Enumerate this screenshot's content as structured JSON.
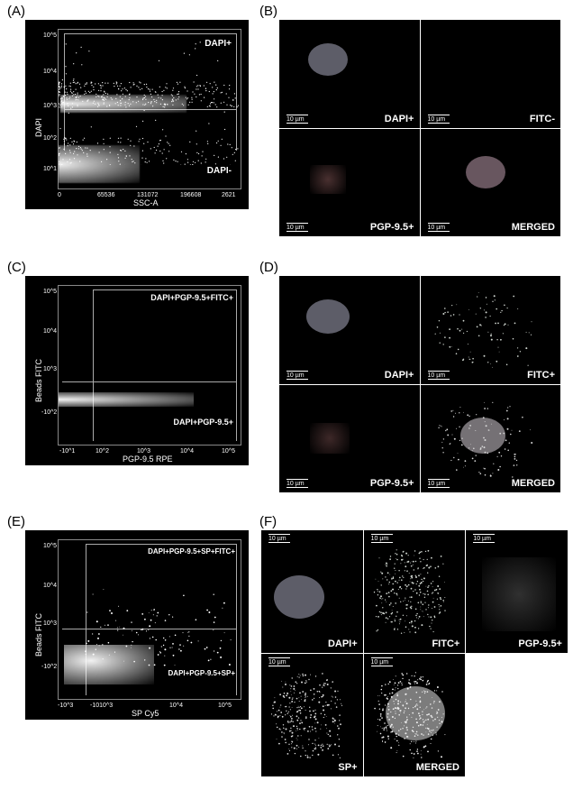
{
  "labels": {
    "A": "(A)",
    "B": "(B)",
    "C": "(C)",
    "D": "(D)",
    "E": "(E)",
    "F": "(F)"
  },
  "panelA": {
    "type": "scatter",
    "xaxis": "SSC-A",
    "yaxis": "DAPI",
    "xticks": [
      "0",
      "65536",
      "131072",
      "196608",
      "2621"
    ],
    "yticks": [
      "10^1",
      "10^2",
      "10^3",
      "10^4",
      "10^5"
    ],
    "gate_upper": "DAPI+",
    "gate_lower": "DAPI-",
    "bg": "#000000",
    "dot_color": "#ffffff"
  },
  "panelB": {
    "type": "microscopy-2x2",
    "labels": [
      "DAPI+",
      "FITC-",
      "PGP-9.5+",
      "MERGED"
    ],
    "scalebar": "10 µm",
    "colors": {
      "dapi": "#6d6d7a",
      "pgp": "#7a5050",
      "merged": "#7a6570"
    }
  },
  "panelC": {
    "type": "scatter",
    "xaxis": "PGP-9.5 RPE",
    "yaxis": "Beads FITC",
    "xticks": [
      "-10^1",
      "10^2",
      "10^3",
      "10^4",
      "10^5"
    ],
    "yticks": [
      "-10^2",
      "10^3",
      "10^4",
      "10^5"
    ],
    "gate_ur": "DAPI+PGP-9.5+FITC+",
    "gate_lr": "DAPI+PGP-9.5+",
    "bg": "#000000"
  },
  "panelD": {
    "type": "microscopy-2x2",
    "labels": [
      "DAPI+",
      "FITC+",
      "PGP-9.5+",
      "MERGED"
    ],
    "scalebar": "10 µm",
    "colors": {
      "dapi": "#6d6d7a",
      "fitc": "#9aa09a",
      "pgp": "#7a5050",
      "merged": "#8a858a"
    }
  },
  "panelE": {
    "type": "scatter",
    "xaxis": "SP Cy5",
    "yaxis": "Beads FITC",
    "xticks": [
      "-10^3",
      "-1010^3",
      "",
      "10^4",
      "10^5"
    ],
    "yticks": [
      "-10^2",
      "10^3",
      "10^4",
      "10^5"
    ],
    "gate_ur": "DAPI+PGP-9.5+SP+FITC+",
    "gate_lr": "DAPI+PGP-9.5+SP+",
    "bg": "#000000"
  },
  "panelF": {
    "type": "microscopy-5",
    "labels": [
      "DAPI+",
      "FITC+",
      "PGP-9.5+",
      "SP+",
      "MERGED"
    ],
    "scalebar": "10 µm",
    "colors": {
      "dapi": "#6d6d7a",
      "fitc": "#9aa09a",
      "pgp": "#8a8a8a",
      "sp": "#aaaaaa",
      "merged": "#b0b0b0"
    }
  },
  "style": {
    "panel_label_fontsize": 15,
    "axis_fontsize": 9,
    "tick_fontsize": 7,
    "micro_label_fontsize": 11
  }
}
